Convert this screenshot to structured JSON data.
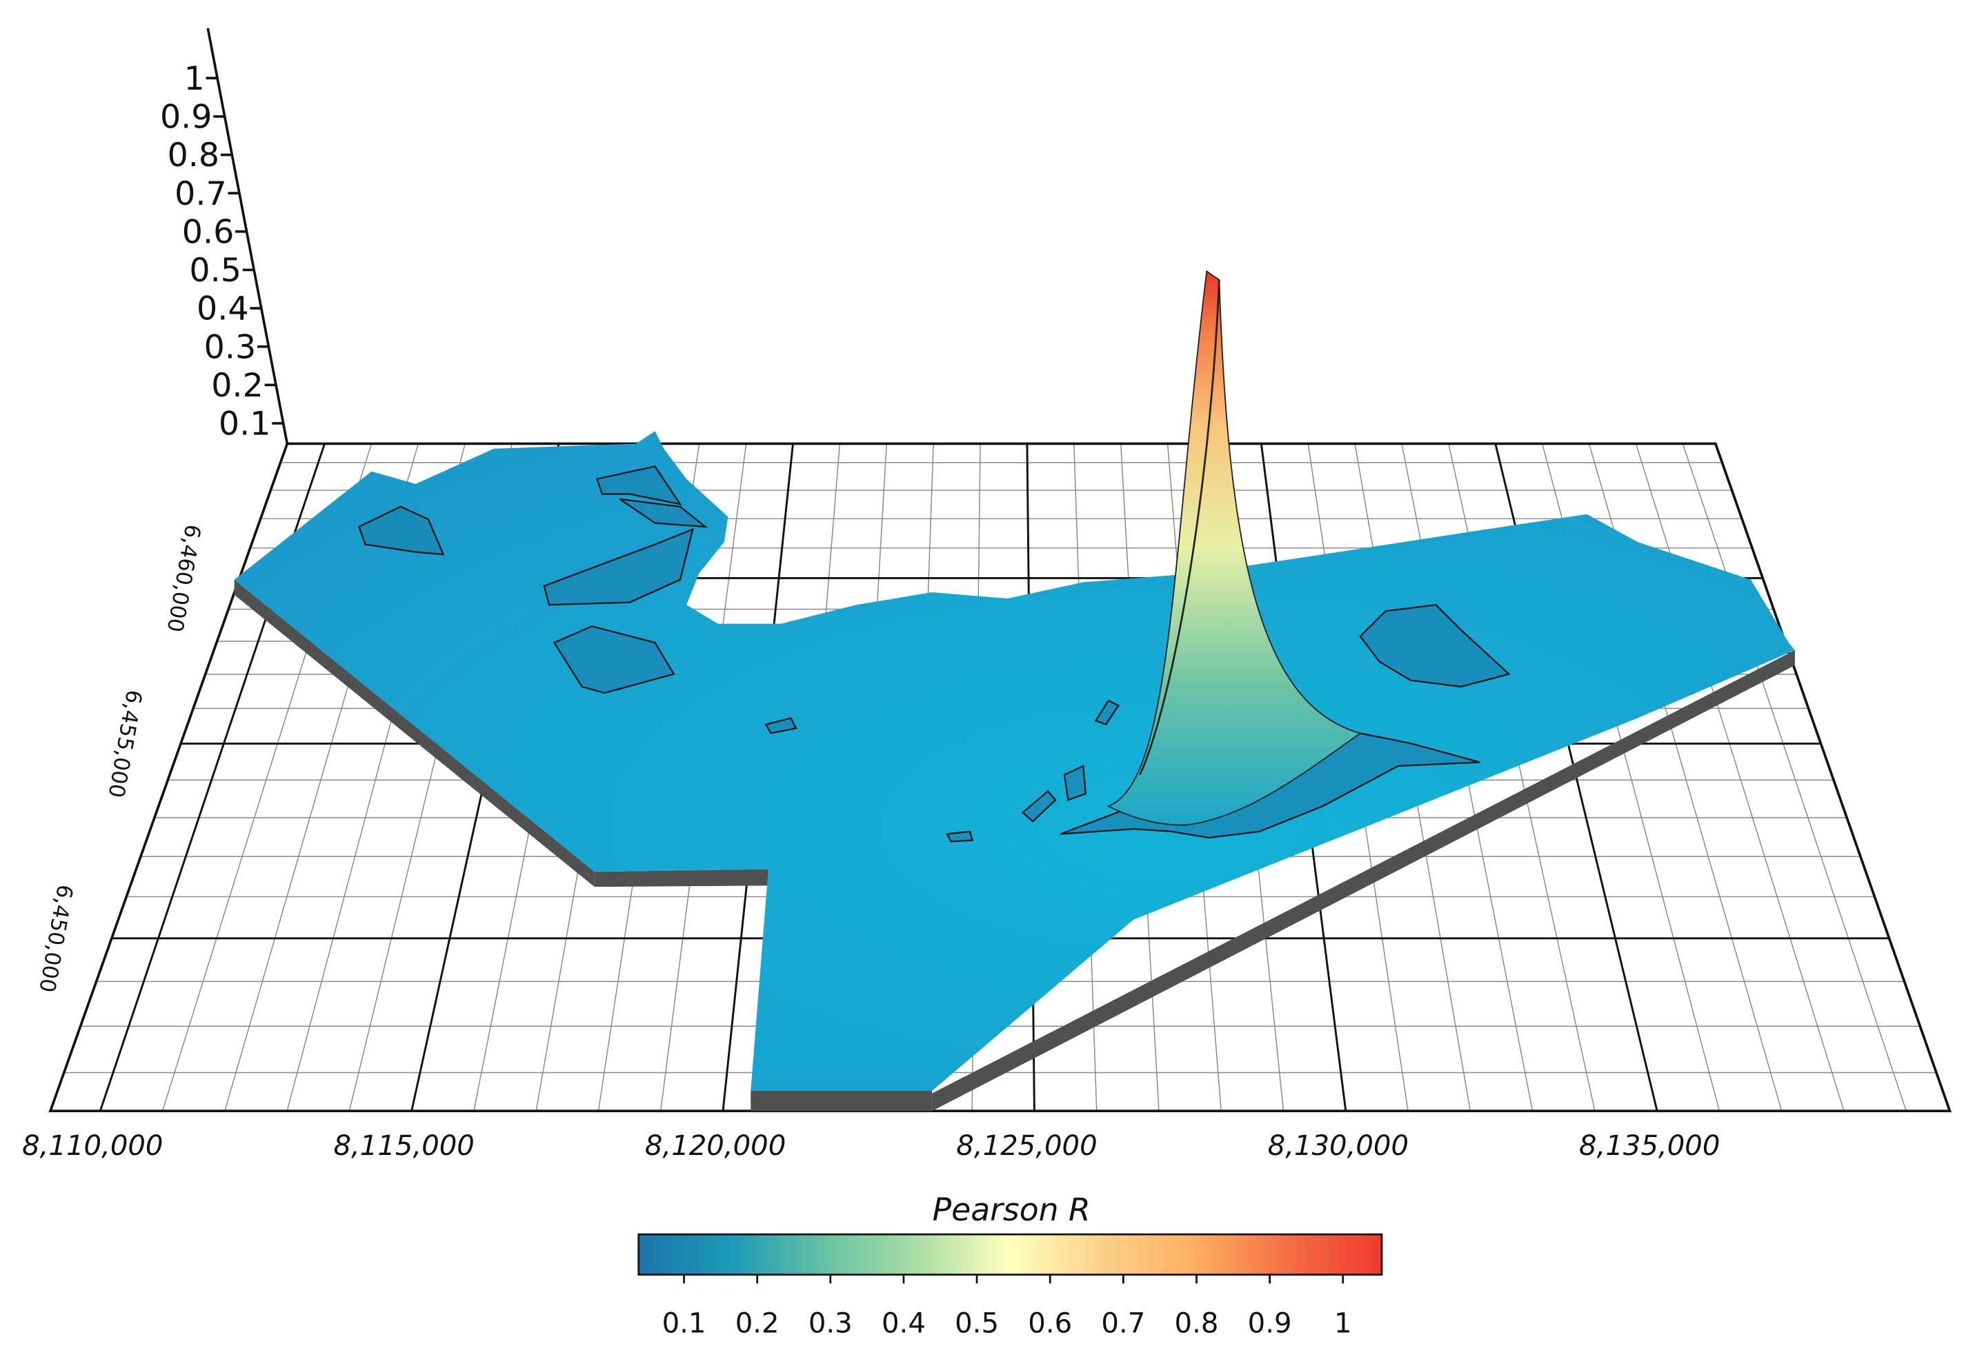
{
  "chart_data": {
    "type": "surface3d",
    "xticks": [
      {
        "value": 8110000,
        "label": "8,110,000"
      },
      {
        "value": 8115000,
        "label": "8,115,000"
      },
      {
        "value": 8120000,
        "label": "8,120,000"
      },
      {
        "value": 8125000,
        "label": "8,125,000"
      },
      {
        "value": 8130000,
        "label": "8,130,000"
      },
      {
        "value": 8135000,
        "label": "8,135,000"
      }
    ],
    "xlim": [
      8109200,
      8139700
    ],
    "yticks": [
      {
        "value": 6450000,
        "label": "6,450,000"
      },
      {
        "value": 6455000,
        "label": "6,455,000"
      },
      {
        "value": 6460000,
        "label": "6,460,000"
      }
    ],
    "ylim": [
      6446200,
      6464700
    ],
    "xminor": [
      8111000,
      8112000,
      8113000,
      8114000,
      8116000,
      8117000,
      8118000,
      8119000,
      8121000,
      8122000,
      8123000,
      8124000,
      8126000,
      8127000,
      8128000,
      8129000,
      8131000,
      8132000,
      8133000,
      8134000,
      8136000,
      8137000,
      8138000,
      8139000
    ],
    "yminor": [
      6447000,
      6448000,
      6449000,
      6451000,
      6452000,
      6453000,
      6454000,
      6456000,
      6457000,
      6458000,
      6459000,
      6461000,
      6462000,
      6463000,
      6464000
    ],
    "zticks": [
      0.1,
      0.2,
      0.3,
      0.4,
      0.5,
      0.6,
      0.7,
      0.8,
      0.9,
      1
    ],
    "zlim": [
      0.047,
      1.13
    ],
    "colorbar": {
      "title": "Pearson R",
      "ticks": [
        0.1,
        0.2,
        0.3,
        0.4,
        0.5,
        0.6,
        0.7,
        0.8,
        0.9,
        1
      ],
      "lim": [
        0.038,
        1.053
      ],
      "colors": [
        "#1a74aa",
        "#1b9bb8",
        "#66c2a5",
        "#abdda4",
        "#ffffbf",
        "#fdd08a",
        "#fdae61",
        "#f46d43",
        "#f0392f"
      ]
    }
  }
}
